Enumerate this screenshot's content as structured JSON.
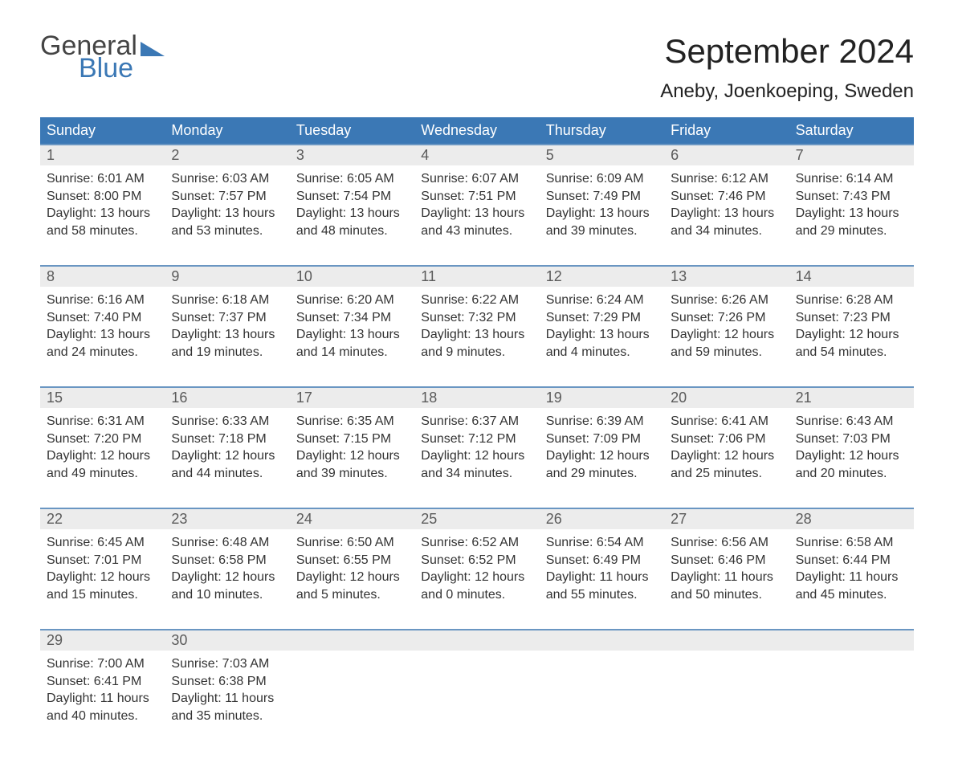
{
  "colors": {
    "accent": "#3b78b5",
    "header_bg": "#3b78b5",
    "header_fg": "#ffffff",
    "daynum_bg": "#ececec",
    "daynum_fg": "#5a5a5a",
    "text": "#333333",
    "rule": "#6a96c2",
    "logo_dark": "#444444",
    "logo_blue": "#3b78b5"
  },
  "logo": {
    "line1": "General",
    "line2": "Blue"
  },
  "title": "September 2024",
  "subtitle": "Aneby, Joenkoeping, Sweden",
  "days_of_week": [
    "Sunday",
    "Monday",
    "Tuesday",
    "Wednesday",
    "Thursday",
    "Friday",
    "Saturday"
  ],
  "weeks": [
    [
      {
        "num": "1",
        "sunrise": "Sunrise: 6:01 AM",
        "sunset": "Sunset: 8:00 PM",
        "day1": "Daylight: 13 hours",
        "day2": "and 58 minutes."
      },
      {
        "num": "2",
        "sunrise": "Sunrise: 6:03 AM",
        "sunset": "Sunset: 7:57 PM",
        "day1": "Daylight: 13 hours",
        "day2": "and 53 minutes."
      },
      {
        "num": "3",
        "sunrise": "Sunrise: 6:05 AM",
        "sunset": "Sunset: 7:54 PM",
        "day1": "Daylight: 13 hours",
        "day2": "and 48 minutes."
      },
      {
        "num": "4",
        "sunrise": "Sunrise: 6:07 AM",
        "sunset": "Sunset: 7:51 PM",
        "day1": "Daylight: 13 hours",
        "day2": "and 43 minutes."
      },
      {
        "num": "5",
        "sunrise": "Sunrise: 6:09 AM",
        "sunset": "Sunset: 7:49 PM",
        "day1": "Daylight: 13 hours",
        "day2": "and 39 minutes."
      },
      {
        "num": "6",
        "sunrise": "Sunrise: 6:12 AM",
        "sunset": "Sunset: 7:46 PM",
        "day1": "Daylight: 13 hours",
        "day2": "and 34 minutes."
      },
      {
        "num": "7",
        "sunrise": "Sunrise: 6:14 AM",
        "sunset": "Sunset: 7:43 PM",
        "day1": "Daylight: 13 hours",
        "day2": "and 29 minutes."
      }
    ],
    [
      {
        "num": "8",
        "sunrise": "Sunrise: 6:16 AM",
        "sunset": "Sunset: 7:40 PM",
        "day1": "Daylight: 13 hours",
        "day2": "and 24 minutes."
      },
      {
        "num": "9",
        "sunrise": "Sunrise: 6:18 AM",
        "sunset": "Sunset: 7:37 PM",
        "day1": "Daylight: 13 hours",
        "day2": "and 19 minutes."
      },
      {
        "num": "10",
        "sunrise": "Sunrise: 6:20 AM",
        "sunset": "Sunset: 7:34 PM",
        "day1": "Daylight: 13 hours",
        "day2": "and 14 minutes."
      },
      {
        "num": "11",
        "sunrise": "Sunrise: 6:22 AM",
        "sunset": "Sunset: 7:32 PM",
        "day1": "Daylight: 13 hours",
        "day2": "and 9 minutes."
      },
      {
        "num": "12",
        "sunrise": "Sunrise: 6:24 AM",
        "sunset": "Sunset: 7:29 PM",
        "day1": "Daylight: 13 hours",
        "day2": "and 4 minutes."
      },
      {
        "num": "13",
        "sunrise": "Sunrise: 6:26 AM",
        "sunset": "Sunset: 7:26 PM",
        "day1": "Daylight: 12 hours",
        "day2": "and 59 minutes."
      },
      {
        "num": "14",
        "sunrise": "Sunrise: 6:28 AM",
        "sunset": "Sunset: 7:23 PM",
        "day1": "Daylight: 12 hours",
        "day2": "and 54 minutes."
      }
    ],
    [
      {
        "num": "15",
        "sunrise": "Sunrise: 6:31 AM",
        "sunset": "Sunset: 7:20 PM",
        "day1": "Daylight: 12 hours",
        "day2": "and 49 minutes."
      },
      {
        "num": "16",
        "sunrise": "Sunrise: 6:33 AM",
        "sunset": "Sunset: 7:18 PM",
        "day1": "Daylight: 12 hours",
        "day2": "and 44 minutes."
      },
      {
        "num": "17",
        "sunrise": "Sunrise: 6:35 AM",
        "sunset": "Sunset: 7:15 PM",
        "day1": "Daylight: 12 hours",
        "day2": "and 39 minutes."
      },
      {
        "num": "18",
        "sunrise": "Sunrise: 6:37 AM",
        "sunset": "Sunset: 7:12 PM",
        "day1": "Daylight: 12 hours",
        "day2": "and 34 minutes."
      },
      {
        "num": "19",
        "sunrise": "Sunrise: 6:39 AM",
        "sunset": "Sunset: 7:09 PM",
        "day1": "Daylight: 12 hours",
        "day2": "and 29 minutes."
      },
      {
        "num": "20",
        "sunrise": "Sunrise: 6:41 AM",
        "sunset": "Sunset: 7:06 PM",
        "day1": "Daylight: 12 hours",
        "day2": "and 25 minutes."
      },
      {
        "num": "21",
        "sunrise": "Sunrise: 6:43 AM",
        "sunset": "Sunset: 7:03 PM",
        "day1": "Daylight: 12 hours",
        "day2": "and 20 minutes."
      }
    ],
    [
      {
        "num": "22",
        "sunrise": "Sunrise: 6:45 AM",
        "sunset": "Sunset: 7:01 PM",
        "day1": "Daylight: 12 hours",
        "day2": "and 15 minutes."
      },
      {
        "num": "23",
        "sunrise": "Sunrise: 6:48 AM",
        "sunset": "Sunset: 6:58 PM",
        "day1": "Daylight: 12 hours",
        "day2": "and 10 minutes."
      },
      {
        "num": "24",
        "sunrise": "Sunrise: 6:50 AM",
        "sunset": "Sunset: 6:55 PM",
        "day1": "Daylight: 12 hours",
        "day2": "and 5 minutes."
      },
      {
        "num": "25",
        "sunrise": "Sunrise: 6:52 AM",
        "sunset": "Sunset: 6:52 PM",
        "day1": "Daylight: 12 hours",
        "day2": "and 0 minutes."
      },
      {
        "num": "26",
        "sunrise": "Sunrise: 6:54 AM",
        "sunset": "Sunset: 6:49 PM",
        "day1": "Daylight: 11 hours",
        "day2": "and 55 minutes."
      },
      {
        "num": "27",
        "sunrise": "Sunrise: 6:56 AM",
        "sunset": "Sunset: 6:46 PM",
        "day1": "Daylight: 11 hours",
        "day2": "and 50 minutes."
      },
      {
        "num": "28",
        "sunrise": "Sunrise: 6:58 AM",
        "sunset": "Sunset: 6:44 PM",
        "day1": "Daylight: 11 hours",
        "day2": "and 45 minutes."
      }
    ],
    [
      {
        "num": "29",
        "sunrise": "Sunrise: 7:00 AM",
        "sunset": "Sunset: 6:41 PM",
        "day1": "Daylight: 11 hours",
        "day2": "and 40 minutes."
      },
      {
        "num": "30",
        "sunrise": "Sunrise: 7:03 AM",
        "sunset": "Sunset: 6:38 PM",
        "day1": "Daylight: 11 hours",
        "day2": "and 35 minutes."
      },
      null,
      null,
      null,
      null,
      null
    ]
  ]
}
